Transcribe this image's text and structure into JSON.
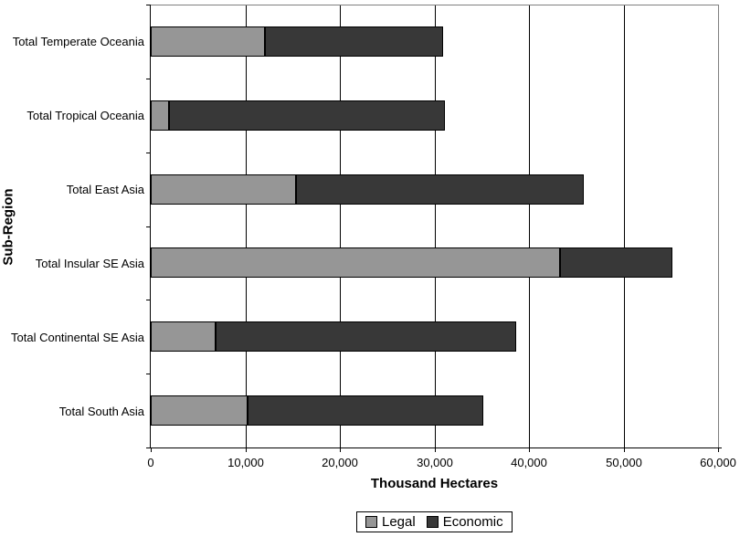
{
  "chart_data": {
    "type": "bar",
    "orientation": "horizontal",
    "stacked": true,
    "title": "",
    "xlabel": "Thousand Hectares",
    "ylabel": "Sub-Region",
    "xlim": [
      0,
      60000
    ],
    "x_ticks": [
      0,
      10000,
      20000,
      30000,
      40000,
      50000,
      60000
    ],
    "x_tick_labels": [
      "0",
      "10,000",
      "20,000",
      "30,000",
      "40,000",
      "50,000",
      "60,000"
    ],
    "grid": "vertical-only",
    "legend_position": "bottom-center",
    "categories_top_to_bottom": [
      "Total Temperate Oceania",
      "Total Tropical Oceania",
      "Total East Asia",
      "Total Insular SE Asia",
      "Total Continental SE Asia",
      "Total South Asia"
    ],
    "series": [
      {
        "name": "Legal",
        "color": "#969696",
        "values": [
          12100,
          1900,
          15400,
          43300,
          6900,
          10200
        ]
      },
      {
        "name": "Economic",
        "color": "#383838",
        "values": [
          18800,
          29200,
          30400,
          11900,
          31800,
          24900
        ]
      }
    ],
    "totals": [
      30900,
      31100,
      45800,
      55200,
      38700,
      35100
    ],
    "colors": {
      "legal": "#969696",
      "economic": "#383838",
      "bar_border": "#000000",
      "gridline": "#000000",
      "plot_border": "#808080",
      "axis": "#000000",
      "background": "#ffffff"
    }
  }
}
